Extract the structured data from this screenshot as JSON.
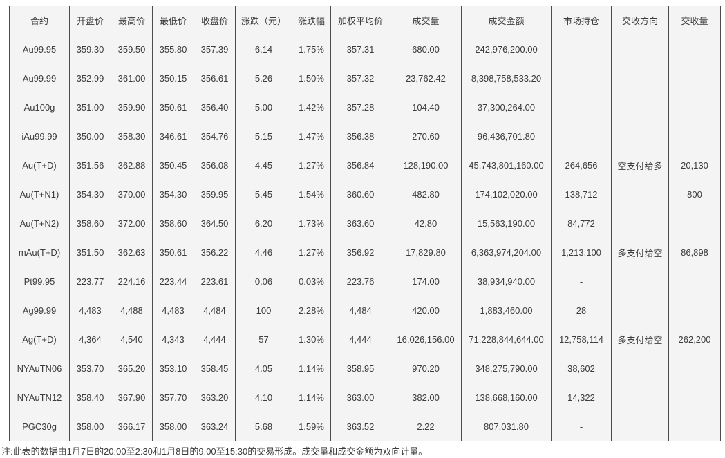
{
  "table": {
    "headers": [
      "合约",
      "开盘价",
      "最高价",
      "最低价",
      "收盘价",
      "涨跌（元）",
      "涨跌幅",
      "加权平均价",
      "成交量",
      "成交金额",
      "市场持仓",
      "交收方向",
      "交收量"
    ],
    "rows": [
      [
        "Au99.95",
        "359.30",
        "359.50",
        "355.80",
        "357.39",
        "6.14",
        "1.75%",
        "357.31",
        "680.00",
        "242,976,200.00",
        "-",
        "",
        ""
      ],
      [
        "Au99.99",
        "352.99",
        "361.00",
        "350.15",
        "356.61",
        "5.26",
        "1.50%",
        "357.32",
        "23,762.42",
        "8,398,758,533.20",
        "-",
        "",
        ""
      ],
      [
        "Au100g",
        "351.00",
        "359.90",
        "350.61",
        "356.40",
        "5.00",
        "1.42%",
        "357.28",
        "104.40",
        "37,300,264.00",
        "-",
        "",
        ""
      ],
      [
        "iAu99.99",
        "350.00",
        "358.30",
        "346.61",
        "354.76",
        "5.15",
        "1.47%",
        "356.38",
        "270.60",
        "96,436,701.80",
        "-",
        "",
        ""
      ],
      [
        "Au(T+D)",
        "351.56",
        "362.88",
        "350.45",
        "356.08",
        "4.45",
        "1.27%",
        "356.84",
        "128,190.00",
        "45,743,801,160.00",
        "264,656",
        "空支付给多",
        "20,130"
      ],
      [
        "Au(T+N1)",
        "354.30",
        "370.00",
        "354.30",
        "359.95",
        "5.45",
        "1.54%",
        "360.60",
        "482.80",
        "174,102,020.00",
        "138,712",
        "",
        "800"
      ],
      [
        "Au(T+N2)",
        "358.60",
        "372.00",
        "358.60",
        "364.50",
        "6.20",
        "1.73%",
        "363.60",
        "42.80",
        "15,563,190.00",
        "84,772",
        "",
        ""
      ],
      [
        "mAu(T+D)",
        "351.50",
        "362.63",
        "350.61",
        "356.22",
        "4.46",
        "1.27%",
        "356.92",
        "17,829.80",
        "6,363,974,204.00",
        "1,213,100",
        "多支付给空",
        "86,898"
      ],
      [
        "Pt99.95",
        "223.77",
        "224.16",
        "223.44",
        "223.61",
        "0.06",
        "0.03%",
        "223.76",
        "174.00",
        "38,934,940.00",
        "-",
        "",
        ""
      ],
      [
        "Ag99.99",
        "4,483",
        "4,488",
        "4,483",
        "4,484",
        "100",
        "2.28%",
        "4,484",
        "420.00",
        "1,883,460.00",
        "28",
        "",
        ""
      ],
      [
        "Ag(T+D)",
        "4,364",
        "4,540",
        "4,343",
        "4,444",
        "57",
        "1.30%",
        "4,444",
        "16,026,156.00",
        "71,228,844,644.00",
        "12,758,114",
        "多支付给空",
        "262,200"
      ],
      [
        "NYAuTN06",
        "353.70",
        "365.20",
        "353.10",
        "358.45",
        "4.05",
        "1.14%",
        "358.95",
        "970.20",
        "348,275,790.00",
        "38,602",
        "",
        ""
      ],
      [
        "NYAuTN12",
        "358.40",
        "367.90",
        "357.70",
        "363.20",
        "4.10",
        "1.14%",
        "363.00",
        "382.00",
        "138,668,160.00",
        "14,322",
        "",
        ""
      ],
      [
        "PGC30g",
        "358.00",
        "366.17",
        "358.00",
        "363.24",
        "5.68",
        "1.59%",
        "363.52",
        "2.22",
        "807,031.80",
        "-",
        "",
        ""
      ]
    ]
  },
  "footnote": "注:此表的数据由1月7日的20:00至2:30和1月8日的9:00至15:30的交易形成。成交量和成交金额为双向计量。",
  "colors": {
    "cell_bg": "#f4f4f4",
    "border": "#4d4d4d",
    "text": "#3c3c3c",
    "page_bg": "#ffffff"
  }
}
